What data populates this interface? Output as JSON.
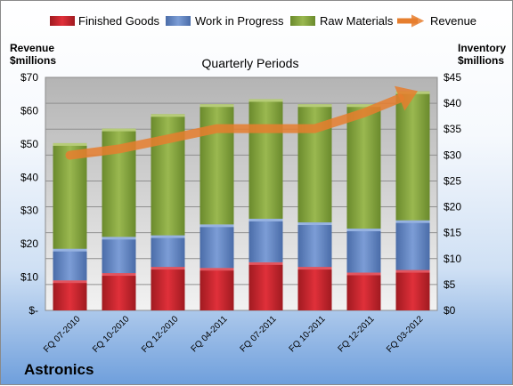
{
  "chart_data": {
    "type": "bar",
    "title": "Quarterly Periods",
    "company": "Astronics",
    "y_left_label": [
      "Revenue",
      "$millions"
    ],
    "y_right_label": [
      "Inventory",
      "$millions"
    ],
    "y_left_ticks": [
      "$-",
      "$10",
      "$20",
      "$30",
      "$40",
      "$50",
      "$60",
      "$70"
    ],
    "y_right_ticks": [
      "$0",
      "$5",
      "$10",
      "$15",
      "$20",
      "$25",
      "$30",
      "$35",
      "$40",
      "$45"
    ],
    "y_right_range": [
      0,
      45
    ],
    "y_left_range": [
      0,
      70
    ],
    "categories": [
      "FQ 07-2010",
      "FQ 10-2010",
      "FQ 12-2010",
      "FQ 04-2011",
      "FQ 07-2011",
      "FQ 10-2011",
      "FQ 12-2011",
      "FQ 03-2012"
    ],
    "series": [
      {
        "name": "Finished Goods",
        "axis": "right",
        "stacked": true,
        "color": "#c0262d",
        "values": [
          5.8,
          7.2,
          8.4,
          8.2,
          9.3,
          8.4,
          7.3,
          7.8
        ]
      },
      {
        "name": "Work in Progress",
        "axis": "right",
        "stacked": true,
        "color": "#5a7fbf",
        "values": [
          6.1,
          7.0,
          6.1,
          8.4,
          8.4,
          8.6,
          8.5,
          9.6
        ]
      },
      {
        "name": "Raw Materials",
        "axis": "right",
        "stacked": true,
        "color": "#7f9e3a",
        "values": [
          20.4,
          20.9,
          23.4,
          23.2,
          23.1,
          22.8,
          24.0,
          24.9
        ]
      },
      {
        "name": "Revenue",
        "axis": "left",
        "type": "line",
        "color": "#e67e2e",
        "values": [
          46.6,
          48.5,
          51.5,
          54.6,
          54.6,
          54.6,
          59.3,
          65.3
        ]
      }
    ],
    "legend_position": "top",
    "grid": true
  }
}
